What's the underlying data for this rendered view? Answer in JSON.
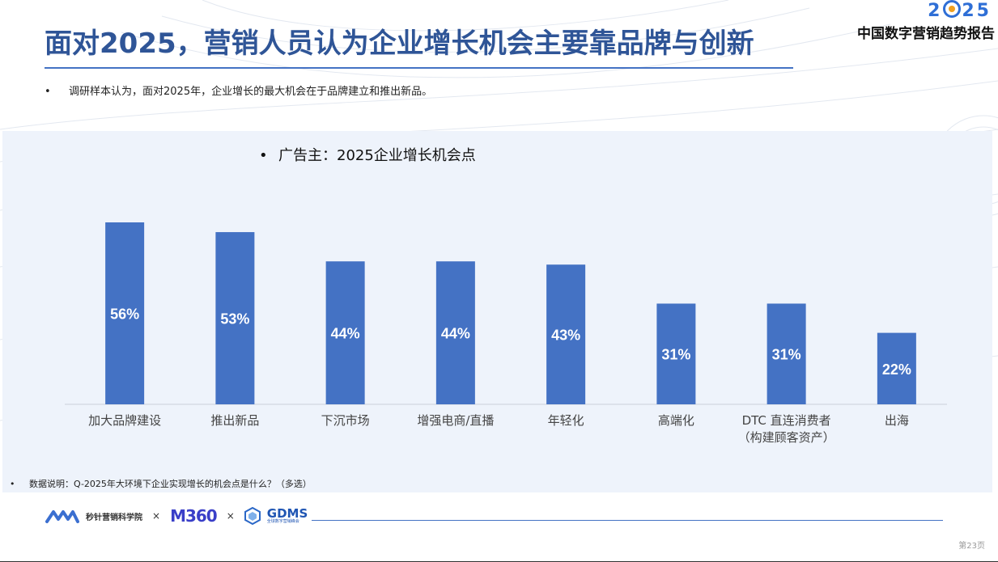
{
  "header": {
    "title": "面对2025，营销人员认为企业增长机会主要靠品牌与创新",
    "logo_year": [
      "2",
      "25"
    ],
    "report_title": "中国数字营销趋势报告"
  },
  "intro": {
    "bullet": "•",
    "text": "调研样本认为，面对2025年，企业增长的最大机会在于品牌建立和推出新品。"
  },
  "chart_heading": {
    "bullet": "•",
    "text": "广告主：2025企业增长机会点"
  },
  "chart_data": {
    "type": "bar",
    "categories": [
      [
        "加大品牌建设"
      ],
      [
        "推出新品"
      ],
      [
        "下沉市场"
      ],
      [
        "增强电商/直播"
      ],
      [
        "年轻化"
      ],
      [
        "高端化"
      ],
      [
        "DTC 直连消费者",
        "（构建顾客资产）"
      ],
      [
        "出海"
      ]
    ],
    "values": [
      56,
      53,
      44,
      44,
      43,
      31,
      31,
      22
    ],
    "value_suffix": "%",
    "bar_color": "#4472c4",
    "label_color": "#ffffff",
    "ylim": [
      0,
      60
    ],
    "grid": false,
    "legend": "none"
  },
  "note": {
    "bullet": "•",
    "text": "数据说明：Q-2025年大环境下企业实现增长的机会点是什么？（多选）"
  },
  "footer": {
    "brand1": "秒针营销科学院",
    "times": "×",
    "m360": "M360",
    "gdms_big": "GDMS",
    "gdms_small": "全球数字营销峰会",
    "page": "第23页"
  },
  "colors": {
    "title": "#2f5597",
    "accent": "#4472c4",
    "panel": "#eef3fb"
  }
}
